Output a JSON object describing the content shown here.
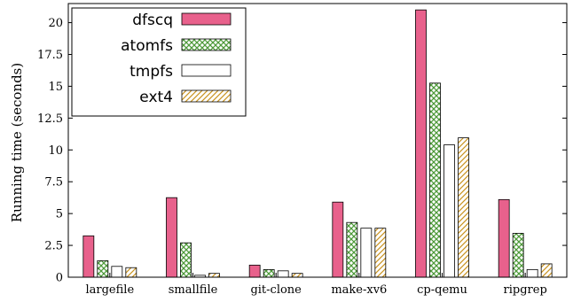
{
  "chart_data": {
    "type": "bar",
    "ylabel": "Running time (seconds)",
    "xlabel": "",
    "ylim": [
      0,
      21.5
    ],
    "yticks": [
      0,
      2.5,
      5,
      7.5,
      10,
      12.5,
      15,
      17.5,
      20
    ],
    "ytick_labels": [
      "0",
      "2.5",
      "5",
      "7.5",
      "10",
      "12.5",
      "15",
      "17.5",
      "20"
    ],
    "categories": [
      "largefile",
      "smallfile",
      "git-clone",
      "make-xv6",
      "cp-qemu",
      "ripgrep"
    ],
    "legend_position": "top-left",
    "series": [
      {
        "name": "dfscq",
        "pattern": "solid",
        "color": "#e8618c",
        "values": [
          3.25,
          6.25,
          0.95,
          5.9,
          21.0,
          6.1
        ]
      },
      {
        "name": "atomfs",
        "pattern": "crosshatch",
        "color": "#4e9a3a",
        "values": [
          1.3,
          2.7,
          0.6,
          4.3,
          15.25,
          3.45
        ]
      },
      {
        "name": "tmpfs",
        "pattern": "empty",
        "color": "#000000",
        "values": [
          0.85,
          0.15,
          0.5,
          3.85,
          10.4,
          0.6
        ]
      },
      {
        "name": "ext4",
        "pattern": "diagonal",
        "color": "#c9931f",
        "values": [
          0.75,
          0.3,
          0.3,
          3.85,
          10.95,
          1.05
        ]
      }
    ]
  }
}
